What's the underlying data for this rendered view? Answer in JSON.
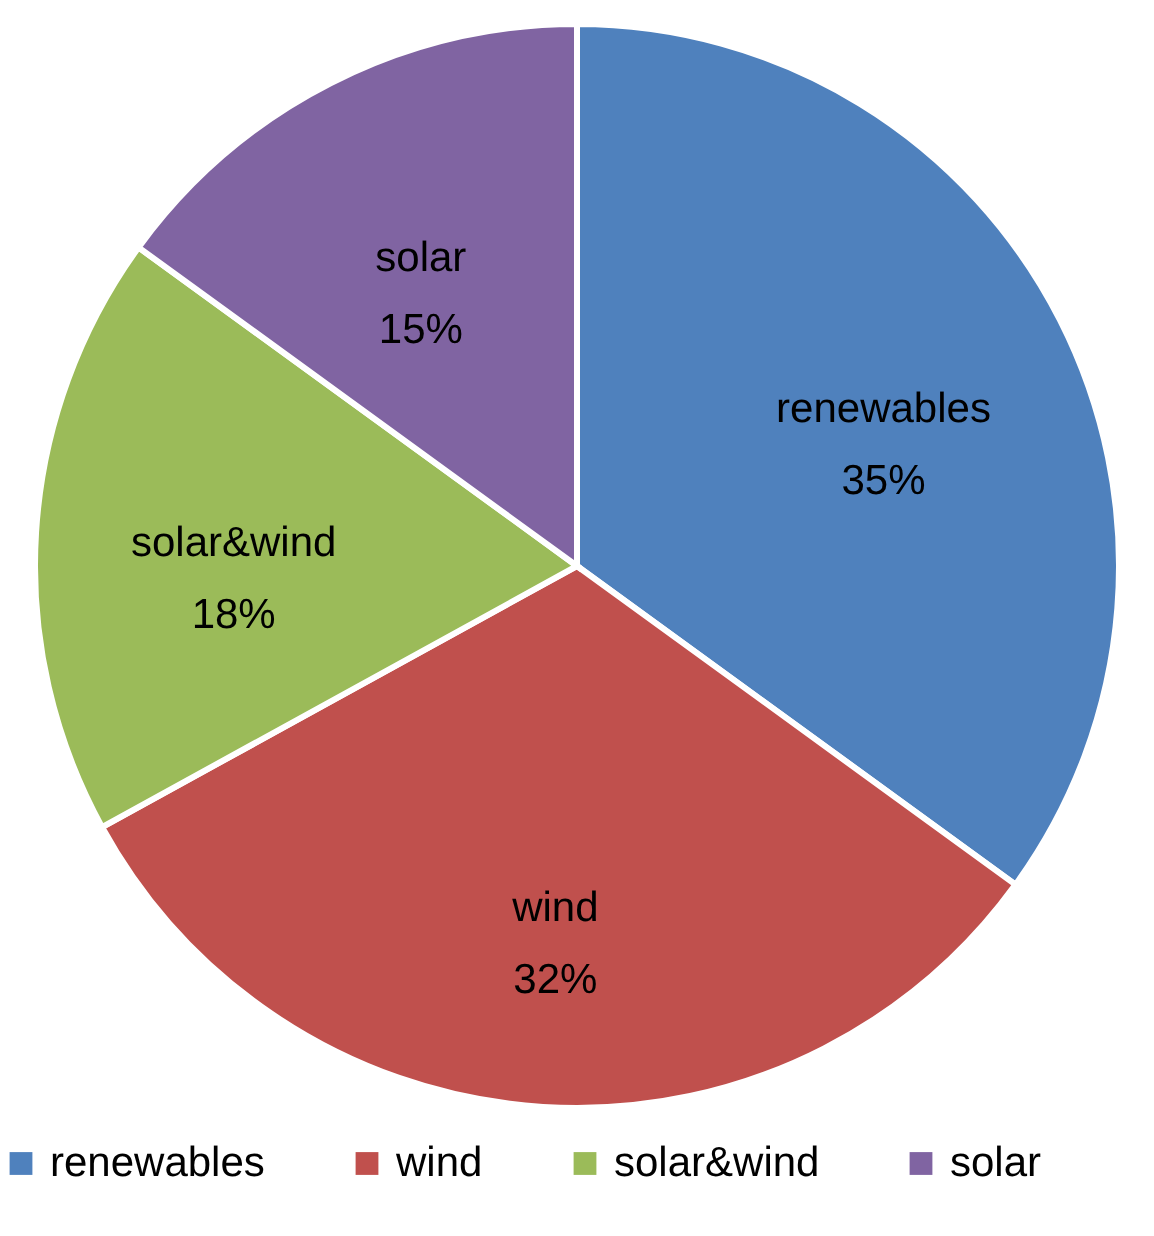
{
  "chart_data": {
    "type": "pie",
    "categories": [
      "renewables",
      "wind",
      "solar&wind",
      "solar"
    ],
    "values": [
      35,
      32,
      18,
      15
    ],
    "colors": [
      "#4f81bd",
      "#c0504d",
      "#9bbb59",
      "#8064a2"
    ],
    "value_labels": [
      "35%",
      "32%",
      "18%",
      "15%"
    ],
    "legend": "bottom"
  }
}
